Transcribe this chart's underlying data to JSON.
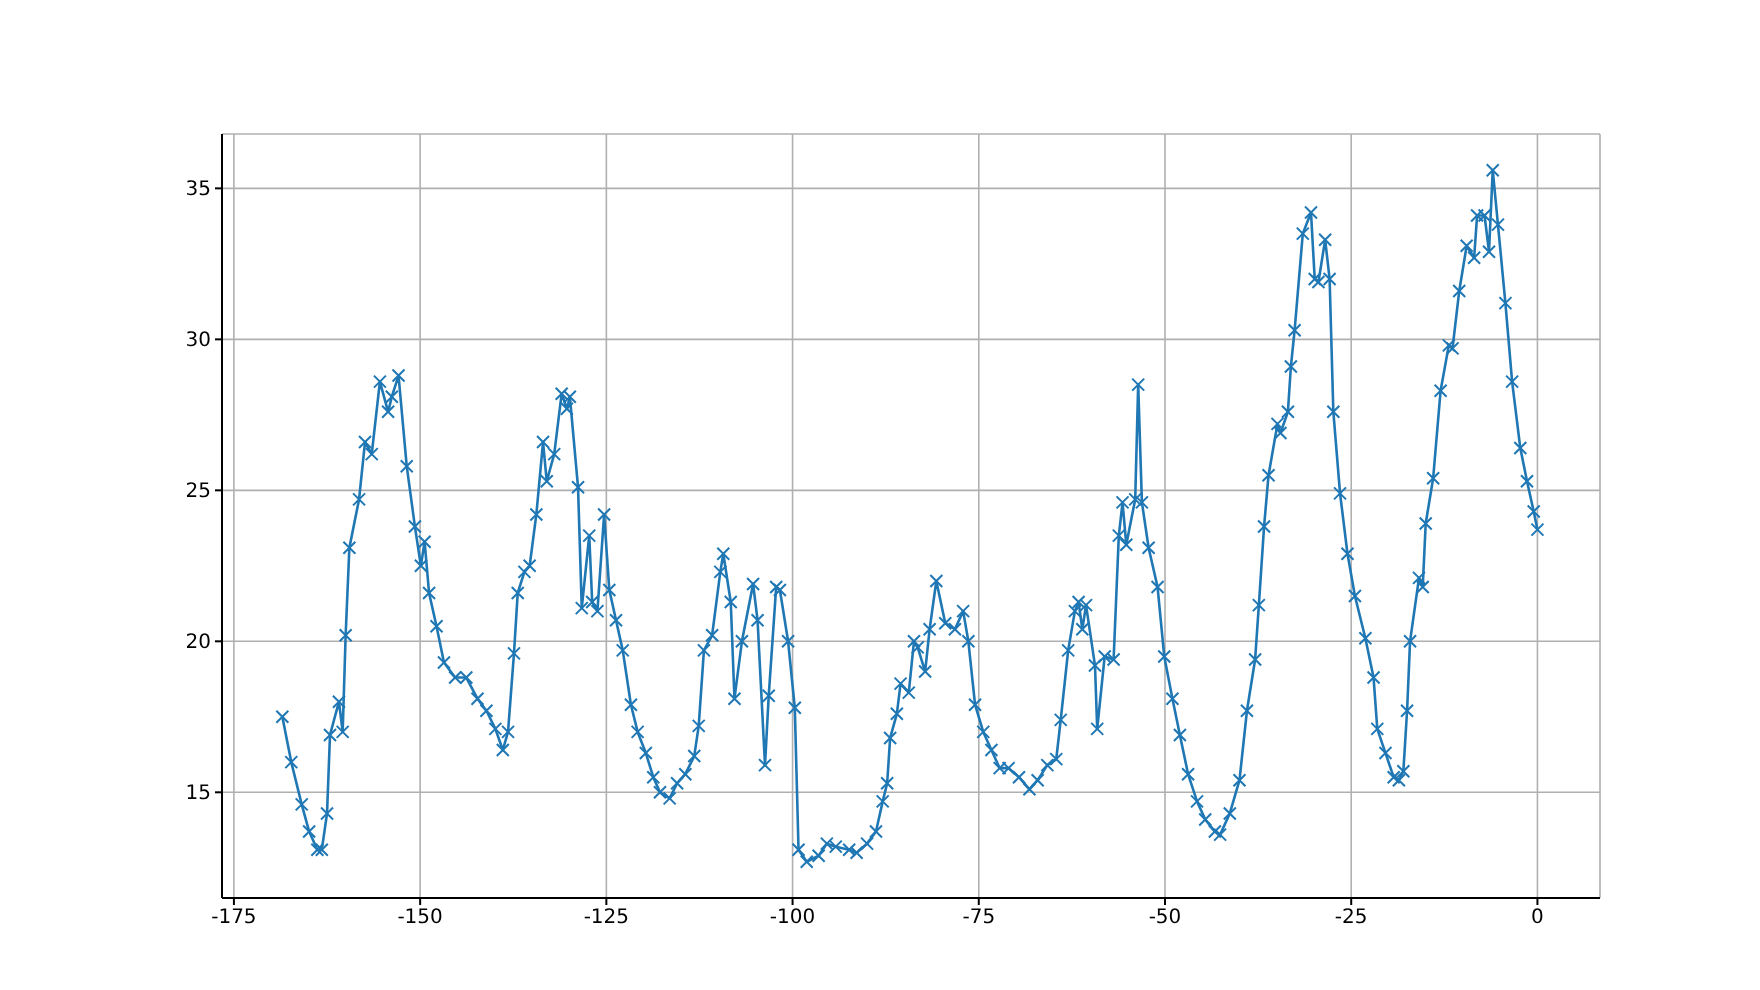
{
  "chart_data": {
    "type": "line",
    "xlim": [
      -176.6,
      8.4
    ],
    "ylim": [
      11.5,
      36.8
    ],
    "xticks": [
      -175,
      -150,
      -125,
      -100,
      -75,
      -50,
      -25,
      0
    ],
    "yticks": [
      15,
      20,
      25,
      30,
      35
    ],
    "grid": true,
    "marker": "cross",
    "line_style": "solid",
    "series": [
      {
        "color": "#1f77b4",
        "x": [
          -168.5,
          -167.3,
          -165.9,
          -164.9,
          -163.8,
          -163.2,
          -162.5,
          -162.1,
          -160.9,
          -160.4,
          -160.0,
          -159.5,
          -158.2,
          -157.4,
          -156.5,
          -155.4,
          -154.3,
          -153.8,
          -152.9,
          -151.8,
          -150.7,
          -149.9,
          -149.4,
          -148.8,
          -147.8,
          -146.8,
          -145.3,
          -143.8,
          -142.3,
          -141.1,
          -139.9,
          -138.9,
          -138.2,
          -137.4,
          -136.9,
          -136.0,
          -135.3,
          -134.4,
          -133.5,
          -133.0,
          -132.0,
          -131.0,
          -130.3,
          -129.9,
          -128.8,
          -128.3,
          -127.3,
          -126.9,
          -126.2,
          -125.3,
          -124.6,
          -123.7,
          -122.8,
          -121.7,
          -120.8,
          -119.7,
          -118.7,
          -117.8,
          -116.5,
          -115.5,
          -114.4,
          -113.2,
          -112.6,
          -111.9,
          -110.8,
          -109.7,
          -109.3,
          -108.3,
          -107.8,
          -106.8,
          -105.3,
          -104.7,
          -103.7,
          -103.2,
          -102.2,
          -101.7,
          -100.6,
          -99.7,
          -99.2,
          -98.1,
          -96.5,
          -95.4,
          -94.2,
          -92.4,
          -91.4,
          -90.0,
          -88.8,
          -87.9,
          -87.3,
          -86.9,
          -86.0,
          -85.5,
          -84.4,
          -83.7,
          -83.2,
          -82.2,
          -81.6,
          -80.7,
          -79.5,
          -78.2,
          -77.1,
          -76.4,
          -75.5,
          -74.4,
          -73.3,
          -72.2,
          -71.0,
          -69.6,
          -68.2,
          -67.1,
          -65.8,
          -64.6,
          -64.0,
          -63.0,
          -62.1,
          -61.6,
          -61.1,
          -60.6,
          -59.4,
          -59.1,
          -58.1,
          -56.9,
          -56.2,
          -55.7,
          -55.2,
          -54.0,
          -53.6,
          -53.1,
          -52.2,
          -51.0,
          -50.1,
          -49.0,
          -48.0,
          -46.9,
          -45.7,
          -44.6,
          -43.3,
          -42.6,
          -41.3,
          -40.0,
          -39.0,
          -37.9,
          -37.4,
          -36.7,
          -36.1,
          -34.9,
          -34.5,
          -33.5,
          -33.1,
          -32.6,
          -31.5,
          -30.4,
          -29.9,
          -29.4,
          -28.5,
          -27.9,
          -27.4,
          -26.5,
          -25.5,
          -24.5,
          -23.1,
          -22.0,
          -21.5,
          -20.4,
          -19.3,
          -18.6,
          -18.0,
          -17.5,
          -17.1,
          -15.9,
          -15.4,
          -15.0,
          -14.0,
          -13.0,
          -11.9,
          -11.4,
          -10.5,
          -9.5,
          -8.5,
          -8.1,
          -7.1,
          -6.5,
          -6.0,
          -5.3,
          -4.3,
          -3.4,
          -2.3,
          -1.4,
          -0.5,
          0.0
        ],
        "values": [
          17.5,
          16.0,
          14.6,
          13.7,
          13.1,
          13.1,
          14.3,
          16.9,
          18.0,
          17.0,
          20.2,
          23.1,
          24.7,
          26.6,
          26.2,
          28.6,
          27.6,
          28.1,
          28.8,
          25.8,
          23.8,
          22.5,
          23.3,
          21.6,
          20.5,
          19.3,
          18.8,
          18.8,
          18.1,
          17.7,
          17.1,
          16.4,
          17.0,
          19.6,
          21.6,
          22.3,
          22.5,
          24.2,
          26.6,
          25.3,
          26.2,
          28.2,
          27.7,
          28.1,
          25.1,
          21.1,
          23.5,
          21.3,
          21.0,
          24.2,
          21.7,
          20.7,
          19.7,
          17.9,
          17.0,
          16.3,
          15.5,
          15.0,
          14.8,
          15.3,
          15.6,
          16.2,
          17.2,
          19.7,
          20.2,
          22.3,
          22.9,
          21.3,
          18.1,
          20.0,
          21.9,
          20.7,
          15.9,
          18.2,
          21.8,
          21.7,
          20.0,
          17.8,
          13.1,
          12.7,
          12.9,
          13.3,
          13.2,
          13.1,
          13.0,
          13.3,
          13.7,
          14.7,
          15.3,
          16.8,
          17.6,
          18.6,
          18.3,
          20.0,
          19.8,
          19.0,
          20.4,
          22.0,
          20.6,
          20.4,
          21.0,
          20.0,
          17.9,
          17.0,
          16.4,
          15.8,
          15.8,
          15.5,
          15.1,
          15.4,
          15.9,
          16.1,
          17.4,
          19.7,
          21.0,
          21.3,
          20.4,
          21.2,
          19.2,
          17.1,
          19.5,
          19.4,
          23.5,
          24.6,
          23.2,
          24.7,
          28.5,
          24.6,
          23.1,
          21.8,
          19.5,
          18.1,
          16.9,
          15.6,
          14.7,
          14.1,
          13.7,
          13.6,
          14.3,
          15.4,
          17.7,
          19.4,
          21.2,
          23.8,
          25.5,
          27.2,
          26.9,
          27.6,
          29.1,
          30.3,
          33.5,
          34.2,
          32.0,
          31.9,
          33.3,
          32.0,
          27.6,
          24.9,
          22.9,
          21.5,
          20.1,
          18.8,
          17.1,
          16.3,
          15.5,
          15.4,
          15.7,
          17.7,
          20.0,
          22.1,
          21.8,
          23.9,
          25.4,
          28.3,
          29.8,
          29.7,
          31.6,
          33.1,
          32.7,
          34.1,
          34.1,
          32.9,
          35.6,
          33.8,
          31.2,
          28.6,
          26.4,
          25.3,
          24.3,
          23.7
        ]
      }
    ]
  }
}
